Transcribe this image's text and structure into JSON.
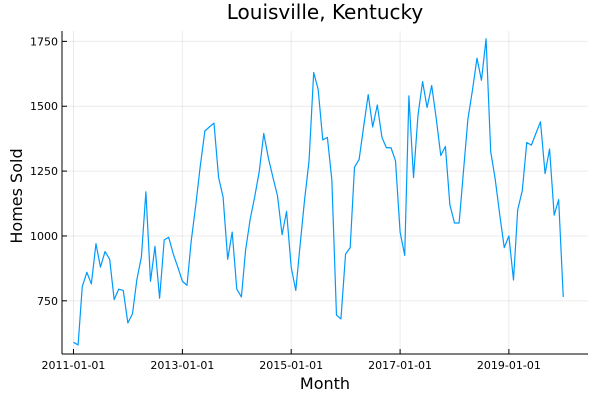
{
  "chart_data": {
    "type": "line",
    "title": "Louisville, Kentucky",
    "xlabel": "Month",
    "ylabel": "Homes Sold",
    "x_start": "2011-01-01",
    "x_ticks": [
      "2011-01-01",
      "2013-01-01",
      "2015-01-01",
      "2017-01-01",
      "2019-01-01"
    ],
    "y_ticks": [
      750,
      1000,
      1250,
      1500,
      1750
    ],
    "xlim": [
      "2010-10-16",
      "2020-06-15"
    ],
    "ylim": [
      545,
      1790
    ],
    "grid": true,
    "legend": "none",
    "series": [
      {
        "color": "#009AFA",
        "values": [
          590,
          580,
          805,
          860,
          815,
          970,
          880,
          940,
          910,
          755,
          795,
          790,
          665,
          700,
          830,
          920,
          1170,
          825,
          960,
          760,
          985,
          995,
          930,
          880,
          825,
          810,
          980,
          1120,
          1270,
          1405,
          1420,
          1435,
          1225,
          1150,
          910,
          1015,
          795,
          765,
          945,
          1065,
          1150,
          1250,
          1395,
          1300,
          1225,
          1155,
          1005,
          1095,
          880,
          790,
          960,
          1140,
          1290,
          1630,
          1565,
          1370,
          1380,
          1215,
          695,
          680,
          930,
          955,
          1265,
          1295,
          1420,
          1545,
          1420,
          1505,
          1380,
          1340,
          1340,
          1290,
          1015,
          925,
          1540,
          1225,
          1465,
          1595,
          1495,
          1580,
          1450,
          1310,
          1345,
          1120,
          1050,
          1050,
          1240,
          1450,
          1560,
          1685,
          1600,
          1760,
          1325,
          1220,
          1080,
          955,
          1000,
          830,
          1100,
          1175,
          1360,
          1350,
          1395,
          1440,
          1240,
          1335,
          1080,
          1140,
          765
        ]
      }
    ]
  }
}
